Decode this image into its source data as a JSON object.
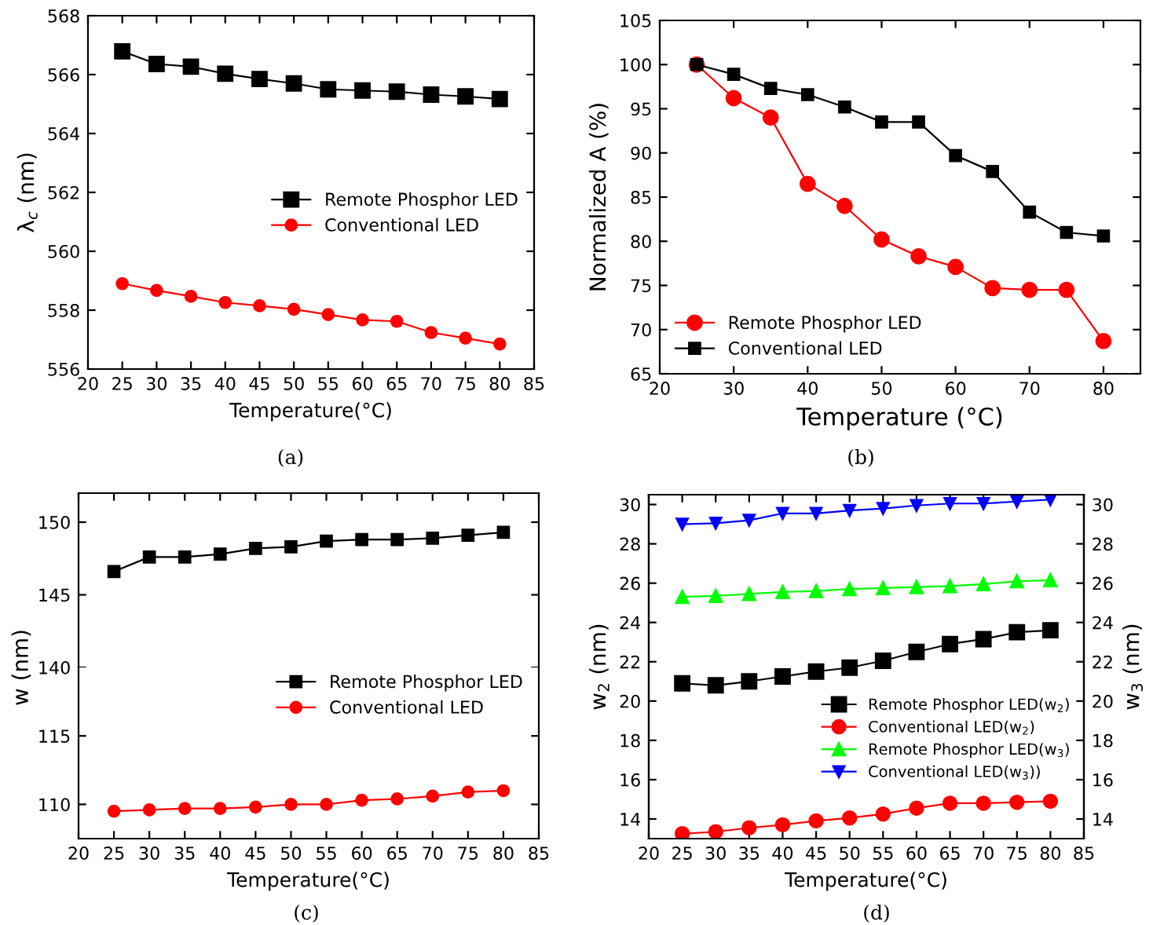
{
  "chart_data": [
    {
      "type": "line",
      "xlabel": "Temperature(°C)",
      "ylabel": "λ$_{c}$ (nm)",
      "annotations": [
        "(a)"
      ],
      "x": [
        25,
        30,
        35,
        40,
        45,
        50,
        55,
        60,
        65,
        70,
        75,
        80
      ],
      "xlim": [
        20,
        85
      ],
      "xticks": [
        20,
        25,
        30,
        35,
        40,
        45,
        50,
        55,
        60,
        65,
        70,
        75,
        80,
        85
      ],
      "ylim": [
        556,
        568
      ],
      "yticks": [
        556,
        558,
        560,
        562,
        564,
        566,
        568
      ],
      "legend": "right",
      "series": [
        {
          "name": "Remote Phosphor LED",
          "color": "#000000",
          "marker": "square",
          "values": [
            566.79,
            566.36,
            566.27,
            566.03,
            565.85,
            565.7,
            565.5,
            565.46,
            565.42,
            565.32,
            565.26,
            565.17
          ]
        },
        {
          "name": "Conventional LED",
          "color": "#ff0000",
          "marker": "circle",
          "values": [
            558.9,
            558.67,
            558.47,
            558.26,
            558.15,
            558.03,
            557.85,
            557.67,
            557.62,
            557.24,
            557.05,
            556.85
          ]
        }
      ]
    },
    {
      "type": "line",
      "xlabel": "Temperature (°C)",
      "ylabel": "Normalized A (%)",
      "annotations": [
        "(b)"
      ],
      "x": [
        25,
        30,
        35,
        40,
        45,
        50,
        55,
        60,
        65,
        70,
        75,
        80
      ],
      "xlim": [
        20,
        85
      ],
      "xticks": [
        20,
        30,
        40,
        50,
        60,
        70,
        80
      ],
      "ylim": [
        65,
        105
      ],
      "yticks": [
        65,
        70,
        75,
        80,
        85,
        90,
        95,
        100,
        105
      ],
      "legend": "lower left",
      "series": [
        {
          "name": "Remote Phosphor LED",
          "color": "#ff0000",
          "marker": "circle",
          "values": [
            100,
            96.2,
            94.0,
            86.5,
            84.0,
            80.2,
            78.3,
            77.1,
            74.7,
            74.5,
            74.5,
            68.7
          ]
        },
        {
          "name": "Conventional LED",
          "color": "#000000",
          "marker": "square",
          "values": [
            100,
            98.9,
            97.3,
            96.6,
            95.2,
            93.5,
            93.5,
            89.7,
            87.9,
            83.3,
            81.0,
            80.6
          ]
        }
      ]
    },
    {
      "type": "line",
      "tick_labels": "y",
      "x": [
        25,
        30,
        35,
        40,
        45,
        50,
        55,
        60,
        65,
        70,
        75,
        80
      ],
      "xlim": [
        20,
        85
      ],
      "xticks": [
        20,
        25,
        30,
        35,
        40,
        45,
        50,
        55,
        60,
        65,
        70,
        75,
        80,
        85
      ],
      "ylim": [
        140,
        152
      ],
      "yticks": [
        140,
        145,
        150
      ],
      "legend": "right",
      "series": [
        {
          "name": "Remote Phosphor LED",
          "color": "#000000",
          "marker": "square",
          "values": [
            146.6,
            147.6,
            147.6,
            147.8,
            148.2,
            148.3,
            148.7,
            148.8,
            148.8,
            148.9,
            149.1,
            149.3
          ]
        }
      ]
    },
    {
      "type": "line",
      "xlabel": "Temperature(°C)",
      "ylabel": "w (nm)",
      "annotations": [
        "(c)"
      ],
      "x": [
        25,
        30,
        35,
        40,
        45,
        50,
        55,
        60,
        65,
        70,
        75,
        80
      ],
      "xlim": [
        20,
        85
      ],
      "xticks": [
        20,
        25,
        30,
        35,
        40,
        45,
        50,
        55,
        60,
        65,
        70,
        75,
        80,
        85
      ],
      "ylim": [
        107.5,
        120
      ],
      "yticks": [
        110,
        115
      ],
      "legend": "right",
      "series": [
        {
          "name": "Conventional LED",
          "color": "#ff0000",
          "marker": "circle",
          "values": [
            109.5,
            109.6,
            109.7,
            109.7,
            109.8,
            110.0,
            110.0,
            110.3,
            110.4,
            110.6,
            110.9,
            111.0
          ]
        }
      ]
    },
    {
      "type": "line",
      "xlabel": "Temperature(°C)",
      "ylabel": "w$_{2}$ (nm)",
      "y2label": "w$_{3}$ (nm)",
      "annotations": [
        "(d)"
      ],
      "x": [
        25,
        30,
        35,
        40,
        45,
        50,
        55,
        60,
        65,
        70,
        75,
        80
      ],
      "xlim": [
        20,
        85
      ],
      "xticks": [
        20,
        25,
        30,
        35,
        40,
        45,
        50,
        55,
        60,
        65,
        70,
        75,
        80,
        85
      ],
      "ylim": [
        13,
        30.5
      ],
      "yticks": [
        14,
        16,
        18,
        20,
        22,
        24,
        26,
        28,
        30
      ],
      "y2lim": [
        13,
        30.5
      ],
      "y2ticks": [
        14,
        16,
        18,
        20,
        22,
        24,
        26,
        28,
        30
      ],
      "legend": "lower right",
      "series": [
        {
          "name": "Remote Phosphor LED(w$_{2}$)",
          "color": "#000000",
          "marker": "square",
          "values": [
            20.9,
            20.8,
            21.0,
            21.25,
            21.5,
            21.7,
            22.05,
            22.5,
            22.9,
            23.15,
            23.5,
            23.6
          ]
        },
        {
          "name": "Conventional LED(w$_{2}$)",
          "color": "#ff0000",
          "marker": "circle",
          "values": [
            13.25,
            13.35,
            13.55,
            13.7,
            13.9,
            14.05,
            14.25,
            14.55,
            14.8,
            14.8,
            14.85,
            14.9
          ]
        },
        {
          "name": "Remote Phosphor LED(w$_{3}$)",
          "color": "#00ff00",
          "marker": "triangle",
          "axis": "y2",
          "values": [
            25.3,
            25.35,
            25.45,
            25.55,
            25.6,
            25.7,
            25.75,
            25.8,
            25.85,
            25.95,
            26.1,
            26.15
          ]
        },
        {
          "name": "Conventional LED(w$_{3}$))",
          "color": "#0000ff",
          "marker": "triangle_down",
          "axis": "y2",
          "values": [
            29.0,
            29.05,
            29.2,
            29.55,
            29.55,
            29.7,
            29.8,
            29.95,
            30.05,
            30.05,
            30.15,
            30.25
          ]
        }
      ]
    }
  ]
}
